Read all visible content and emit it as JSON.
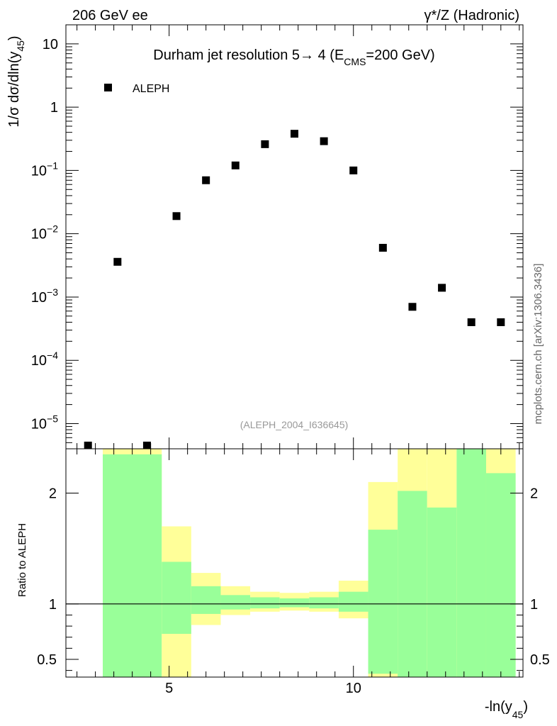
{
  "header": {
    "left": "206 GeV ee",
    "right": "γ*/Z (Hadronic)"
  },
  "side_label": "mcplots.cern.ch [arXiv:1306.3436]",
  "colors": {
    "band_outer": "#ffff99",
    "band_inner": "#99ff99",
    "marker": "#000000"
  },
  "chart_data": [
    {
      "type": "scatter",
      "title": "Durham jet resolution 5→ 4 (E",
      "title_sub": "CMS",
      "title_end": "=200 GeV)",
      "ylabel": "1/σ  dσ/dln(y",
      "ylabel_sub": "45",
      "ylabel_end": ")",
      "yscale": "log",
      "ylim": [
        4e-06,
        20
      ],
      "xlim": [
        2.2,
        14.6
      ],
      "yticks": [
        {
          "v": 10,
          "label": "10"
        },
        {
          "v": 1,
          "label": "1"
        },
        {
          "v": 0.1,
          "label": "10",
          "exp": "−1"
        },
        {
          "v": 0.01,
          "label": "10",
          "exp": "−2"
        },
        {
          "v": 0.001,
          "label": "10",
          "exp": "−3"
        },
        {
          "v": 0.0001,
          "label": "10",
          "exp": "−4"
        },
        {
          "v": 1e-05,
          "label": "10",
          "exp": "−5"
        }
      ],
      "legend": "ALEPH",
      "watermark": "(ALEPH_2004_I636645)",
      "series": [
        {
          "name": "ALEPH",
          "x": [
            2.8,
            3.6,
            4.4,
            5.2,
            6.0,
            6.8,
            7.6,
            8.4,
            9.2,
            10.0,
            10.8,
            11.6,
            12.4,
            13.2,
            14.0
          ],
          "y": [
            4.5e-06,
            0.0036,
            4.5e-06,
            0.019,
            0.07,
            0.12,
            0.26,
            0.38,
            0.29,
            0.1,
            0.006,
            0.0007,
            0.0014,
            0.0004,
            0.0004
          ]
        }
      ]
    },
    {
      "type": "area",
      "ylabel": "Ratio to ALEPH",
      "xlabel": "-ln(y",
      "xlabel_sub": "45",
      "xlabel_end": ")",
      "ylim": [
        0.34,
        2.4
      ],
      "xlim": [
        2.2,
        14.6
      ],
      "yticks": [
        {
          "v": 2,
          "label": "2"
        },
        {
          "v": 1,
          "label": "1"
        },
        {
          "v": 0.5,
          "label": "0.5"
        }
      ],
      "xticks": [
        {
          "v": 5,
          "label": "5"
        },
        {
          "v": 10,
          "label": "10"
        }
      ],
      "reference_line": 1,
      "bins": [
        {
          "x0": 3.2,
          "x1": 4.8,
          "outer_lo": 0.3,
          "outer_hi": 2.4,
          "inner_lo": 0.3,
          "inner_hi": 2.35
        },
        {
          "x0": 4.8,
          "x1": 5.6,
          "outer_lo": 0.3,
          "outer_hi": 1.7,
          "inner_lo": 0.73,
          "inner_hi": 1.38
        },
        {
          "x0": 5.6,
          "x1": 6.4,
          "outer_lo": 0.81,
          "outer_hi": 1.28,
          "inner_lo": 0.91,
          "inner_hi": 1.16
        },
        {
          "x0": 6.4,
          "x1": 7.2,
          "outer_lo": 0.9,
          "outer_hi": 1.16,
          "inner_lo": 0.95,
          "inner_hi": 1.08
        },
        {
          "x0": 7.2,
          "x1": 8.0,
          "outer_lo": 0.93,
          "outer_hi": 1.11,
          "inner_lo": 0.96,
          "inner_hi": 1.06
        },
        {
          "x0": 8.0,
          "x1": 8.8,
          "outer_lo": 0.94,
          "outer_hi": 1.1,
          "inner_lo": 0.97,
          "inner_hi": 1.05
        },
        {
          "x0": 8.8,
          "x1": 9.6,
          "outer_lo": 0.93,
          "outer_hi": 1.11,
          "inner_lo": 0.96,
          "inner_hi": 1.06
        },
        {
          "x0": 9.6,
          "x1": 10.4,
          "outer_lo": 0.87,
          "outer_hi": 1.21,
          "inner_lo": 0.93,
          "inner_hi": 1.11
        },
        {
          "x0": 10.4,
          "x1": 11.2,
          "outer_lo": 0.3,
          "outer_hi": 2.1,
          "inner_lo": 0.37,
          "inner_hi": 1.67
        },
        {
          "x0": 11.2,
          "x1": 12.0,
          "outer_lo": 0.3,
          "outer_hi": 2.4,
          "inner_lo": 0.3,
          "inner_hi": 2.02
        },
        {
          "x0": 12.0,
          "x1": 12.8,
          "outer_lo": 0.3,
          "outer_hi": 2.4,
          "inner_lo": 0.3,
          "inner_hi": 1.87
        },
        {
          "x0": 12.8,
          "x1": 13.6,
          "outer_lo": 0.3,
          "outer_hi": 2.4,
          "inner_lo": 0.3,
          "inner_hi": 2.4
        },
        {
          "x0": 13.6,
          "x1": 14.4,
          "outer_lo": 0.3,
          "outer_hi": 2.4,
          "inner_lo": 0.3,
          "inner_hi": 2.18
        }
      ]
    }
  ]
}
